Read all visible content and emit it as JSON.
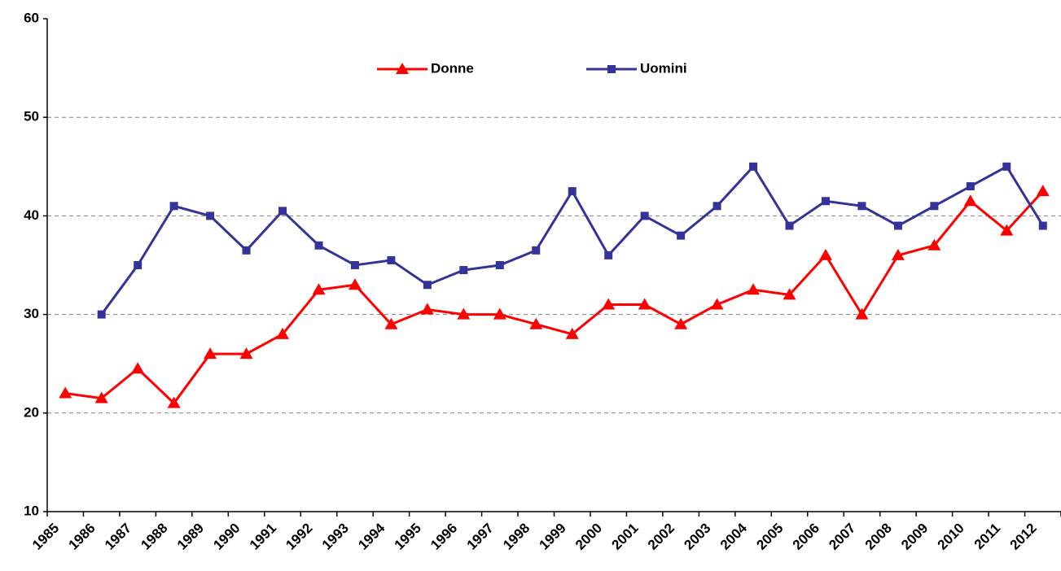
{
  "chart_data": {
    "type": "line",
    "categories": [
      "1985",
      "1986",
      "1987",
      "1988",
      "1989",
      "1990",
      "1991",
      "1992",
      "1993",
      "1994",
      "1995",
      "1996",
      "1997",
      "1998",
      "1999",
      "2000",
      "2001",
      "2002",
      "2003",
      "2004",
      "2005",
      "2006",
      "2007",
      "2008",
      "2009",
      "2010",
      "2011",
      "2012"
    ],
    "series": [
      {
        "name": "Donne",
        "color": "#ff0000",
        "marker": "triangle",
        "values": [
          22,
          21.5,
          24.5,
          21,
          26,
          26,
          28,
          32.5,
          33,
          29,
          30.5,
          30,
          30,
          29,
          28,
          31,
          31,
          29,
          31,
          32.5,
          32,
          36,
          30,
          36,
          37,
          41.5,
          38.5,
          42.5
        ]
      },
      {
        "name": "Uomini",
        "color": "#333399",
        "marker": "square",
        "values": [
          null,
          30,
          35,
          41,
          40,
          36.5,
          40.5,
          37,
          35,
          35.5,
          33,
          34.5,
          35,
          36.5,
          42.5,
          36,
          40,
          38,
          41,
          45,
          39,
          41.5,
          41,
          39,
          41,
          43,
          45,
          39
        ]
      }
    ],
    "ylim": [
      10,
      60
    ],
    "yticks": [
      10,
      20,
      30,
      40,
      50,
      60
    ],
    "grid": true,
    "legend": "top"
  }
}
